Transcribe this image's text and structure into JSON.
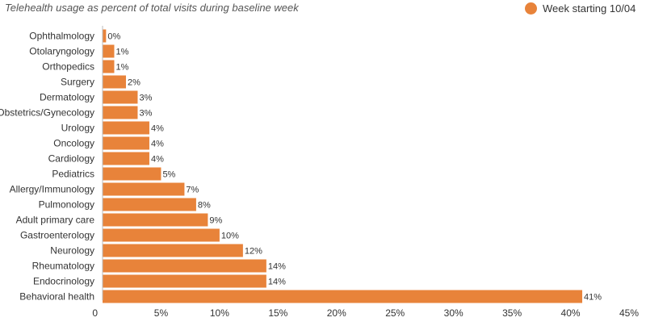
{
  "chart_data": {
    "type": "bar",
    "orientation": "horizontal",
    "title": "Telehealth usage as percent of total visits during baseline week",
    "categories": [
      "Ophthalmology",
      "Otolaryngology",
      "Orthopedics",
      "Surgery",
      "Dermatology",
      "Obstetrics/Gynecology",
      "Urology",
      "Oncology",
      "Cardiology",
      "Pediatrics",
      "Allergy/Immunology",
      "Pulmonology",
      "Adult primary care",
      "Gastroenterology",
      "Neurology",
      "Rheumatology",
      "Endocrinology",
      "Behavioral health"
    ],
    "series": [
      {
        "name": "Week starting 10/04",
        "values": [
          0.3,
          1,
          1,
          2,
          3,
          3,
          4,
          4,
          4,
          5,
          7,
          8,
          9,
          10,
          12,
          14,
          14,
          41
        ],
        "labels": [
          "0%",
          "1%",
          "1%",
          "2%",
          "3%",
          "3%",
          "4%",
          "4%",
          "4%",
          "5%",
          "7%",
          "8%",
          "9%",
          "10%",
          "12%",
          "14%",
          "14%",
          "41%"
        ],
        "color": "#E8833A"
      }
    ],
    "xlim": [
      0,
      45
    ],
    "xticks": [
      0,
      5,
      10,
      15,
      20,
      25,
      30,
      35,
      40,
      45
    ],
    "xtick_labels": [
      "0",
      "5%",
      "10%",
      "15%",
      "20%",
      "25%",
      "30%",
      "35%",
      "40%",
      "45%"
    ],
    "grid": false,
    "legend": "top-right"
  }
}
